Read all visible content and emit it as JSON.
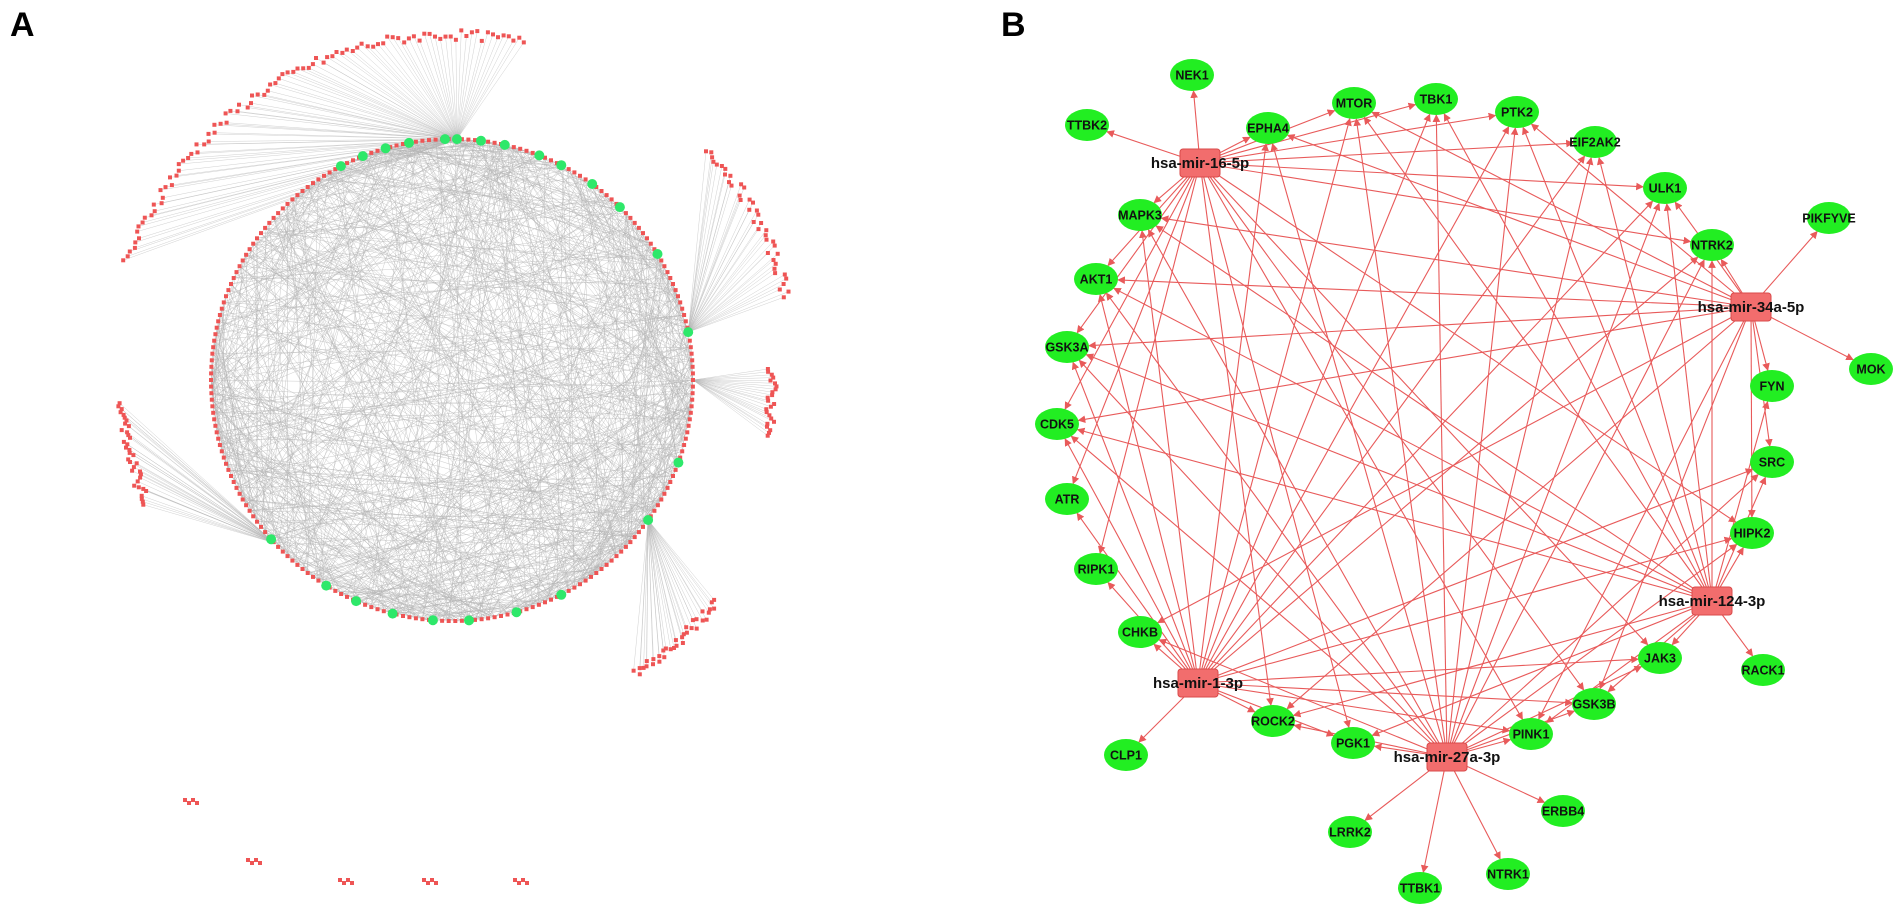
{
  "panels": {
    "a": {
      "label": "A"
    },
    "b": {
      "label": "B"
    }
  },
  "colors": {
    "mirna_node": "#f26d6d",
    "mirna_border": "#d94a4a",
    "gene_node": "#22ee22",
    "hub_node": "#2ee86a",
    "edge_b": "#e85a5a",
    "edge_a": "#b5b5b5",
    "small_node": "#ee5555"
  },
  "network_b": {
    "mirnas": [
      {
        "id": "m16",
        "label": "hsa-mir-16-5p"
      },
      {
        "id": "m34",
        "label": "hsa-mir-34a-5p"
      },
      {
        "id": "m124",
        "label": "hsa-mir-124-3p"
      },
      {
        "id": "m27",
        "label": "hsa-mir-27a-3p"
      },
      {
        "id": "m1",
        "label": "hsa-mir-1-3p"
      }
    ],
    "genes": [
      "NEK1",
      "TTBK2",
      "EPHA4",
      "MTOR",
      "TBK1",
      "PTK2",
      "EIF2AK2",
      "ULK1",
      "PIKFYVE",
      "MAPK3",
      "NTRK2",
      "AKT1",
      "GSK3A",
      "MOK",
      "FYN",
      "CDK5",
      "SRC",
      "ATR",
      "HIPK2",
      "RIPK1",
      "CHKB",
      "JAK3",
      "RACK1",
      "ROCK2",
      "GSK3B",
      "CLP1",
      "PGK1",
      "PINK1",
      "LRRK2",
      "ERBB4",
      "TTBK1",
      "NTRK1",
      "TBK1"
    ],
    "edges": [
      [
        "m16",
        "NEK1"
      ],
      [
        "m16",
        "TTBK2"
      ],
      [
        "m16",
        "EPHA4"
      ],
      [
        "m16",
        "MTOR"
      ],
      [
        "m16",
        "TBK1"
      ],
      [
        "m16",
        "PTK2"
      ],
      [
        "m16",
        "EIF2AK2"
      ],
      [
        "m16",
        "ULK1"
      ],
      [
        "m16",
        "NTRK2"
      ],
      [
        "m16",
        "MAPK3"
      ],
      [
        "m16",
        "AKT1"
      ],
      [
        "m16",
        "GSK3A"
      ],
      [
        "m16",
        "CDK5"
      ],
      [
        "m16",
        "ATR"
      ],
      [
        "m16",
        "HIPK2"
      ],
      [
        "m16",
        "ROCK2"
      ],
      [
        "m16",
        "GSK3B"
      ],
      [
        "m16",
        "PINK1"
      ],
      [
        "m16",
        "RIPK1"
      ],
      [
        "m16",
        "PGK1"
      ],
      [
        "m16",
        "JAK3"
      ],
      [
        "m34",
        "PIKFYVE"
      ],
      [
        "m34",
        "MOK"
      ],
      [
        "m34",
        "ULK1"
      ],
      [
        "m34",
        "NTRK2"
      ],
      [
        "m34",
        "FYN"
      ],
      [
        "m34",
        "SRC"
      ],
      [
        "m34",
        "HIPK2"
      ],
      [
        "m34",
        "AKT1"
      ],
      [
        "m34",
        "MAPK3"
      ],
      [
        "m34",
        "MTOR"
      ],
      [
        "m34",
        "EPHA4"
      ],
      [
        "m34",
        "CHKB"
      ],
      [
        "m34",
        "PINK1"
      ],
      [
        "m34",
        "ROCK2"
      ],
      [
        "m34",
        "GSK3B"
      ],
      [
        "m34",
        "GSK3A"
      ],
      [
        "m34",
        "PTK2"
      ],
      [
        "m34",
        "CDK5"
      ],
      [
        "m124",
        "RACK1"
      ],
      [
        "m124",
        "JAK3"
      ],
      [
        "m124",
        "GSK3B"
      ],
      [
        "m124",
        "PINK1"
      ],
      [
        "m124",
        "HIPK2"
      ],
      [
        "m124",
        "SRC"
      ],
      [
        "m124",
        "FYN"
      ],
      [
        "m124",
        "NTRK2"
      ],
      [
        "m124",
        "ULK1"
      ],
      [
        "m124",
        "EIF2AK2"
      ],
      [
        "m124",
        "TBK1"
      ],
      [
        "m124",
        "MAPK3"
      ],
      [
        "m124",
        "AKT1"
      ],
      [
        "m124",
        "GSK3A"
      ],
      [
        "m124",
        "ROCK2"
      ],
      [
        "m124",
        "PGK1"
      ],
      [
        "m124",
        "PTK2"
      ],
      [
        "m124",
        "MTOR"
      ],
      [
        "m124",
        "CDK5"
      ],
      [
        "m27",
        "LRRK2"
      ],
      [
        "m27",
        "TTBK1"
      ],
      [
        "m27",
        "NTRK1"
      ],
      [
        "m27",
        "ERBB4"
      ],
      [
        "m27",
        "PINK1"
      ],
      [
        "m27",
        "GSK3B"
      ],
      [
        "m27",
        "PGK1"
      ],
      [
        "m27",
        "ROCK2"
      ],
      [
        "m27",
        "JAK3"
      ],
      [
        "m27",
        "HIPK2"
      ],
      [
        "m27",
        "SRC"
      ],
      [
        "m27",
        "NTRK2"
      ],
      [
        "m27",
        "ULK1"
      ],
      [
        "m27",
        "EIF2AK2"
      ],
      [
        "m27",
        "PTK2"
      ],
      [
        "m27",
        "TBK1"
      ],
      [
        "m27",
        "MTOR"
      ],
      [
        "m27",
        "EPHA4"
      ],
      [
        "m27",
        "MAPK3"
      ],
      [
        "m27",
        "AKT1"
      ],
      [
        "m27",
        "GSK3A"
      ],
      [
        "m27",
        "CDK5"
      ],
      [
        "m27",
        "CHKB"
      ],
      [
        "m1",
        "CLP1"
      ],
      [
        "m1",
        "ROCK2"
      ],
      [
        "m1",
        "CHKB"
      ],
      [
        "m1",
        "RIPK1"
      ],
      [
        "m1",
        "ATR"
      ],
      [
        "m1",
        "CDK5"
      ],
      [
        "m1",
        "GSK3A"
      ],
      [
        "m1",
        "AKT1"
      ],
      [
        "m1",
        "MAPK3"
      ],
      [
        "m1",
        "EPHA4"
      ],
      [
        "m1",
        "MTOR"
      ],
      [
        "m1",
        "PTK2"
      ],
      [
        "m1",
        "EIF2AK2"
      ],
      [
        "m1",
        "ULK1"
      ],
      [
        "m1",
        "NTRK2"
      ],
      [
        "m1",
        "SRC"
      ],
      [
        "m1",
        "HIPK2"
      ],
      [
        "m1",
        "JAK3"
      ],
      [
        "m1",
        "GSK3B"
      ],
      [
        "m1",
        "PINK1"
      ],
      [
        "m1",
        "PGK1"
      ],
      [
        "m1",
        "TBK1"
      ]
    ]
  }
}
